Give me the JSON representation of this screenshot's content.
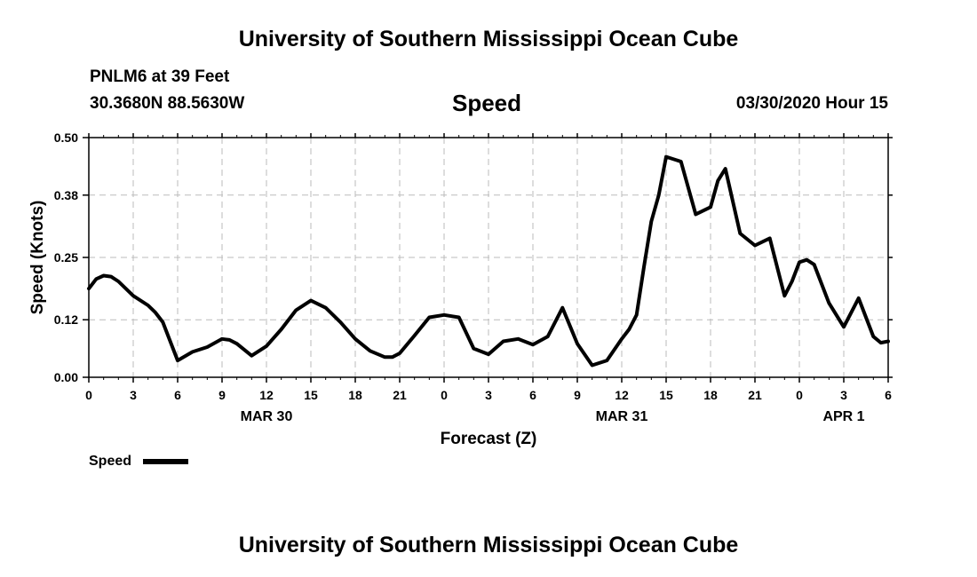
{
  "header": {
    "title": "University of Southern Mississippi Ocean Cube",
    "station": "PNLM6 at 39 Feet",
    "coordinates": "30.3680N 88.5630W",
    "variable": "Speed",
    "datetime": "03/30/2020 Hour 15"
  },
  "footer": {
    "title": "University of Southern Mississippi Ocean Cube"
  },
  "chart_data": {
    "type": "line",
    "title": "Speed",
    "xlabel": "Forecast (Z)",
    "ylabel": "Speed (Knots)",
    "xlim": [
      0,
      54
    ],
    "ylim": [
      0,
      0.5
    ],
    "yticks": [
      0.0,
      0.12,
      0.25,
      0.38,
      0.5
    ],
    "ytick_labels": [
      "0.00",
      "0.12",
      "0.25",
      "0.38",
      "0.50"
    ],
    "xticks": [
      0,
      3,
      6,
      9,
      12,
      15,
      18,
      21,
      24,
      27,
      30,
      33,
      36,
      39,
      42,
      45,
      48,
      51,
      54
    ],
    "xtick_labels": [
      "0",
      "3",
      "6",
      "9",
      "12",
      "15",
      "18",
      "21",
      "0",
      "3",
      "6",
      "9",
      "12",
      "15",
      "18",
      "21",
      "0",
      "3",
      "6"
    ],
    "day_labels": [
      {
        "x": 12,
        "label": "MAR 30"
      },
      {
        "x": 36,
        "label": "MAR 31"
      },
      {
        "x": 51,
        "label": "APR 1"
      }
    ],
    "grid": true,
    "legend": {
      "position": "bottom-left",
      "label": "Speed"
    },
    "series": [
      {
        "name": "Speed",
        "x": [
          0,
          0.5,
          1,
          1.5,
          2,
          3,
          4,
          4.5,
          5,
          6,
          7,
          8,
          9,
          9.5,
          10,
          11,
          12,
          13,
          14,
          15,
          16,
          17,
          18,
          19,
          20,
          20.5,
          21,
          22,
          23,
          24,
          25,
          26,
          27,
          28,
          29,
          30,
          31,
          32,
          33,
          34,
          35,
          36,
          36.5,
          37,
          37.5,
          38,
          38.5,
          39,
          40,
          41,
          42,
          42.5,
          43,
          44,
          45,
          46,
          47,
          47.5,
          48,
          48.5,
          49,
          50,
          51,
          52,
          53,
          53.5,
          54
        ],
        "values": [
          0.185,
          0.205,
          0.212,
          0.21,
          0.2,
          0.17,
          0.15,
          0.135,
          0.115,
          0.035,
          0.053,
          0.063,
          0.08,
          0.078,
          0.07,
          0.045,
          0.065,
          0.1,
          0.14,
          0.16,
          0.145,
          0.115,
          0.08,
          0.055,
          0.042,
          0.042,
          0.05,
          0.087,
          0.125,
          0.13,
          0.125,
          0.06,
          0.048,
          0.075,
          0.08,
          0.068,
          0.085,
          0.145,
          0.07,
          0.025,
          0.035,
          0.08,
          0.1,
          0.13,
          0.23,
          0.325,
          0.38,
          0.46,
          0.45,
          0.34,
          0.355,
          0.41,
          0.435,
          0.3,
          0.275,
          0.29,
          0.17,
          0.2,
          0.24,
          0.245,
          0.235,
          0.155,
          0.105,
          0.165,
          0.085,
          0.072,
          0.075
        ]
      }
    ]
  }
}
